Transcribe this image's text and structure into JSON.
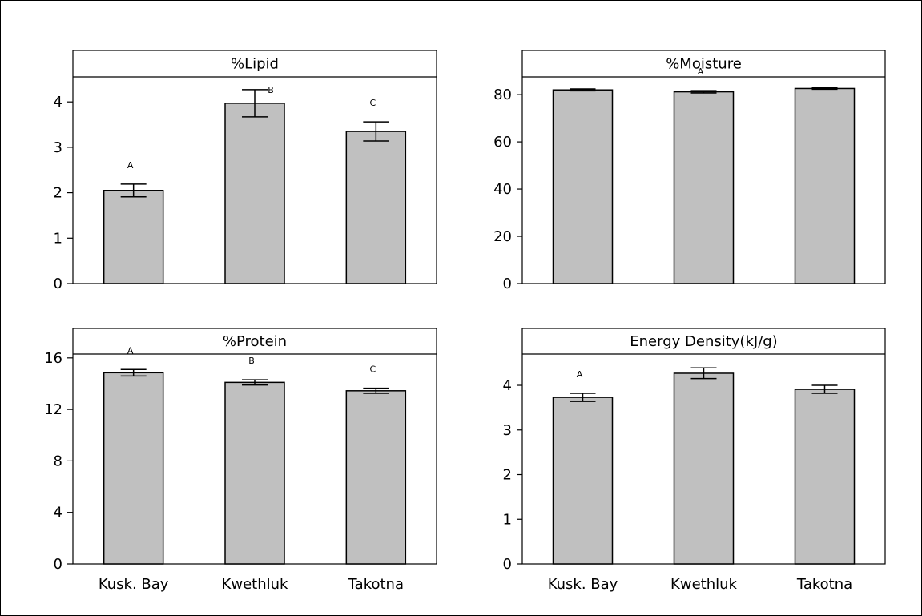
{
  "chart_data": [
    {
      "type": "bar",
      "title": "%Lipid",
      "categories": [
        "Kusk. Bay",
        "Kwethluk",
        "Takotna"
      ],
      "values": [
        2.05,
        3.97,
        3.35
      ],
      "errors": [
        0.14,
        0.3,
        0.21
      ],
      "letters": [
        "A",
        "B",
        "C"
      ],
      "yticks": [
        "0",
        "1",
        "2",
        "3",
        "4"
      ],
      "ylim": [
        0,
        4.55
      ],
      "show_xlabels": false,
      "bar_color": "#c0c0c0"
    },
    {
      "type": "bar",
      "title": "%Moisture",
      "categories": [
        "Kusk. Bay",
        "Kwethluk",
        "Takotna"
      ],
      "values": [
        82,
        81.2,
        82.6
      ],
      "errors": [
        0.4,
        0.5,
        0.3
      ],
      "letters": [
        "",
        "A",
        ""
      ],
      "yticks": [
        "0",
        "20",
        "40",
        "60",
        "80"
      ],
      "ylim": [
        0,
        87.5
      ],
      "show_xlabels": false,
      "bar_color": "#c0c0c0"
    },
    {
      "type": "bar",
      "title": "%Protein",
      "categories": [
        "Kusk. Bay",
        "Kwethluk",
        "Takotna"
      ],
      "values": [
        14.85,
        14.1,
        13.45
      ],
      "errors": [
        0.25,
        0.2,
        0.2
      ],
      "letters": [
        "A",
        "B",
        "C"
      ],
      "yticks": [
        "0",
        "4",
        "8",
        "12",
        "16"
      ],
      "ylim": [
        0,
        16.3
      ],
      "show_xlabels": true,
      "bar_color": "#c0c0c0"
    },
    {
      "type": "bar",
      "title": "Energy Density(kJ/g)",
      "categories": [
        "Kusk. Bay",
        "Kwethluk",
        "Takotna"
      ],
      "values": [
        3.73,
        4.27,
        3.91
      ],
      "errors": [
        0.09,
        0.12,
        0.09
      ],
      "letters": [
        "A",
        "",
        ""
      ],
      "yticks": [
        "0",
        "1",
        "2",
        "3",
        "4"
      ],
      "ylim": [
        0,
        4.7
      ],
      "show_xlabels": true,
      "bar_color": "#c0c0c0"
    }
  ]
}
